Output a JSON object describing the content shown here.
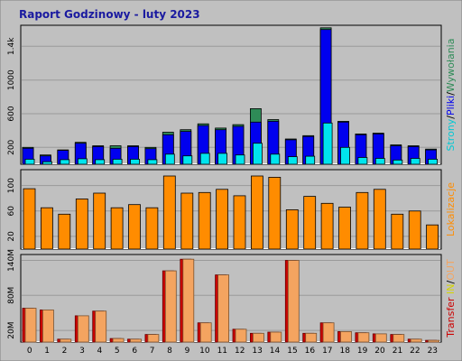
{
  "title": "Raport Godzinowy -  luty 2023",
  "colors": {
    "background": "#c0c0c0",
    "panel": "#c0c0c0",
    "grid": "#9a9a9a",
    "title": "#1a1aa0",
    "wizyty": "#2e8b57",
    "pliki": "#0000ee",
    "strony": "#00e5ee",
    "wejscia": "#ff8c00",
    "transfer_in": "#cc0000",
    "transfer_out": "#f4a460"
  },
  "chart_data": [
    {
      "type": "bar",
      "panel": "top",
      "categories": [
        "0",
        "1",
        "2",
        "3",
        "4",
        "5",
        "6",
        "7",
        "8",
        "9",
        "10",
        "11",
        "12",
        "13",
        "14",
        "15",
        "16",
        "17",
        "18",
        "19",
        "20",
        "21",
        "22",
        "23"
      ],
      "y_ticks": [
        "200",
        "600",
        "1000",
        "1.4k"
      ],
      "y_tick_values": [
        200,
        600,
        1000,
        1400
      ],
      "ylim": [
        0,
        1650
      ],
      "side_label_parts": [
        {
          "text": "Strony",
          "color": "#00c8d4"
        },
        {
          "text": "/",
          "color": "#000000"
        },
        {
          "text": "Pliki",
          "color": "#0000ee"
        },
        {
          "text": "/",
          "color": "#000000"
        },
        {
          "text": "Wywołania",
          "color": "#2e8b57"
        }
      ],
      "series": [
        {
          "name": "Wywołania",
          "values": [
            200,
            110,
            170,
            260,
            220,
            220,
            220,
            200,
            380,
            410,
            480,
            430,
            470,
            660,
            530,
            300,
            340,
            1620,
            510,
            360,
            370,
            230,
            220,
            180
          ]
        },
        {
          "name": "Pliki",
          "values": [
            190,
            100,
            165,
            250,
            210,
            190,
            210,
            185,
            350,
            390,
            460,
            410,
            450,
            500,
            510,
            290,
            330,
            1600,
            500,
            350,
            360,
            220,
            210,
            170
          ]
        },
        {
          "name": "Strony",
          "values": [
            60,
            30,
            55,
            65,
            55,
            60,
            60,
            55,
            120,
            100,
            130,
            130,
            110,
            250,
            120,
            90,
            95,
            490,
            200,
            80,
            70,
            50,
            70,
            60
          ]
        }
      ]
    },
    {
      "type": "bar",
      "panel": "middle",
      "categories": [
        "0",
        "1",
        "2",
        "3",
        "4",
        "5",
        "6",
        "7",
        "8",
        "9",
        "10",
        "11",
        "12",
        "13",
        "14",
        "15",
        "16",
        "17",
        "18",
        "19",
        "20",
        "21",
        "22",
        "23"
      ],
      "y_ticks": [
        "20",
        "60",
        "100"
      ],
      "y_tick_values": [
        20,
        60,
        100
      ],
      "ylim": [
        0,
        125
      ],
      "side_label_parts": [
        {
          "text": "Lokalizacje",
          "color": "#ff8c00"
        }
      ],
      "series": [
        {
          "name": "Lokalizacje",
          "values": [
            95,
            65,
            55,
            79,
            88,
            65,
            70,
            65,
            115,
            88,
            89,
            94,
            84,
            115,
            113,
            62,
            83,
            72,
            66,
            89,
            94,
            55,
            60,
            38
          ]
        }
      ]
    },
    {
      "type": "bar",
      "panel": "bottom",
      "categories": [
        "0",
        "1",
        "2",
        "3",
        "4",
        "5",
        "6",
        "7",
        "8",
        "9",
        "10",
        "11",
        "12",
        "13",
        "14",
        "15",
        "16",
        "17",
        "18",
        "19",
        "20",
        "21",
        "22",
        "23"
      ],
      "y_ticks": [
        "20M",
        "80M",
        "140M"
      ],
      "y_tick_values": [
        20,
        80,
        140
      ],
      "ylim": [
        0,
        150
      ],
      "side_label_parts": [
        {
          "text": "Transfer",
          "color": "#cc0000"
        },
        {
          "text": "  ",
          "color": "#000000"
        },
        {
          "text": "IN",
          "color": "#d4d400"
        },
        {
          "text": "/",
          "color": "#000000"
        },
        {
          "text": "OUT",
          "color": "#f4a460"
        }
      ],
      "series": [
        {
          "name": "IN",
          "values": [
            58,
            55,
            5,
            45,
            53,
            6,
            5,
            13,
            122,
            142,
            33,
            115,
            22,
            15,
            17,
            140,
            15,
            33,
            18,
            16,
            14,
            13,
            5,
            3
          ]
        },
        {
          "name": "OUT",
          "values": [
            58,
            55,
            5,
            45,
            53,
            6,
            5,
            13,
            122,
            142,
            33,
            115,
            22,
            15,
            17,
            140,
            15,
            33,
            18,
            16,
            14,
            13,
            5,
            3
          ]
        }
      ]
    }
  ]
}
